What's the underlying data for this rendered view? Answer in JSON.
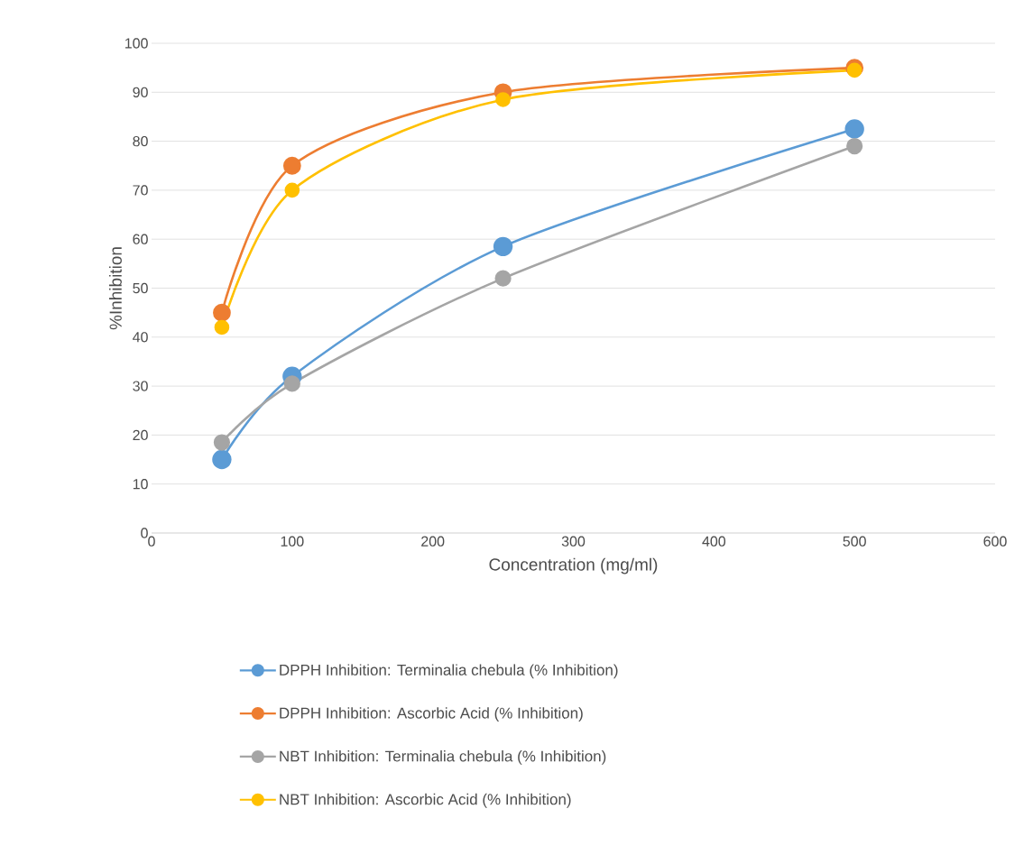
{
  "chart_data": {
    "type": "line",
    "xlabel": "Concentration (mg/ml)",
    "ylabel": "%Inhibition",
    "x": [
      50,
      100,
      250,
      500
    ],
    "series": [
      {
        "name": "DPPH Inhibition: Terminalia chebula (% Inhibition)",
        "color": "#5b9bd5",
        "values": [
          15,
          32,
          58.5,
          82.5
        ]
      },
      {
        "name": "DPPH Inhibition: Ascorbic Acid (% Inhibition)",
        "color": "#ed7d31",
        "values": [
          45,
          75,
          90,
          95
        ]
      },
      {
        "name": "NBT Inhibition: Terminalia chebula (% Inhibition)",
        "color": "#a5a5a5",
        "values": [
          18.5,
          30.5,
          52,
          79
        ]
      },
      {
        "name": "NBT Inhibition: Ascorbic Acid (% Inhibition)",
        "color": "#ffc000",
        "values": [
          42,
          70,
          88.5,
          94.5
        ]
      }
    ],
    "xlim": [
      0,
      600
    ],
    "xticks": [
      0,
      100,
      200,
      300,
      400,
      500,
      600
    ],
    "ylim": [
      0,
      100
    ],
    "yticks": [
      0,
      10,
      20,
      30,
      40,
      50,
      60,
      70,
      80,
      90,
      100
    ],
    "grid": "y",
    "legend": "bottom",
    "marker": "circle",
    "line_style": "solid"
  }
}
